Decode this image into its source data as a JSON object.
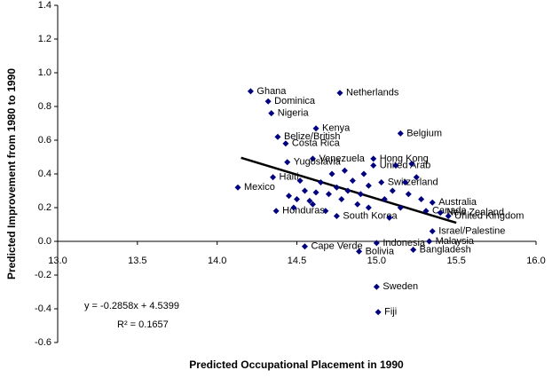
{
  "chart_data": {
    "type": "scatter",
    "x_label": "Predicted Occupational Placement in 1990",
    "y_label": "Predicted Improvement from 1980 to 1990",
    "color": "#000080",
    "xlim": [
      13,
      16
    ],
    "ylim": [
      -0.6,
      1.4
    ],
    "xticks": [
      {
        "value": 13,
        "label": "13.0"
      },
      13.5,
      14.5,
      {
        "value": 14,
        "label": "14.0"
      },
      {
        "value": 15,
        "label": "15.0"
      },
      15.5,
      {
        "value": 16,
        "label": "16.0"
      }
    ],
    "yticks": [
      -0.6,
      -0.4,
      -0.2,
      {
        "value": 0,
        "label": "0.0"
      },
      0.2,
      0.4,
      0.6,
      0.8,
      {
        "value": 1,
        "label": "1.0"
      },
      1.2,
      1.4
    ],
    "x": [
      14.21,
      14.32,
      14.34,
      14.77,
      14.62,
      14.38,
      14.43,
      15.15,
      14.6,
      14.98,
      14.44,
      14.35,
      14.13,
      15.35,
      15.31,
      15.4,
      15.45,
      15.35,
      14.37,
      14.75,
      14.55,
      14.89,
      15.0,
      15.33,
      15.23,
      15.0,
      15.01,
      15.03,
      14.98,
      14.45,
      14.5,
      14.55,
      14.6,
      14.65,
      14.7,
      14.72,
      14.75,
      14.78,
      14.8,
      14.82,
      14.85,
      14.88,
      14.9,
      14.92,
      14.95,
      15.05,
      15.1,
      15.12,
      15.15,
      15.2,
      15.25,
      15.28,
      14.52,
      14.58,
      14.68,
      14.95,
      15.08,
      15.18,
      15.22,
      14.48,
      14.62
    ],
    "values": [
      0.89,
      0.83,
      0.76,
      0.88,
      0.67,
      0.62,
      0.58,
      0.64,
      0.49,
      0.49,
      0.47,
      0.38,
      0.32,
      0.23,
      0.18,
      0.17,
      0.15,
      0.06,
      0.18,
      0.15,
      -0.03,
      -0.06,
      -0.01,
      0.0,
      -0.05,
      -0.27,
      -0.42,
      0.35,
      0.45,
      0.27,
      0.25,
      0.3,
      0.22,
      0.35,
      0.28,
      0.4,
      0.32,
      0.25,
      0.42,
      0.3,
      0.36,
      0.22,
      0.28,
      0.4,
      0.33,
      0.25,
      0.3,
      0.45,
      0.2,
      0.28,
      0.38,
      0.25,
      0.36,
      0.24,
      0.18,
      0.2,
      0.14,
      0.35,
      0.46,
      0.2,
      0.29
    ],
    "labels": [
      "Ghana",
      "Dominica",
      "Nigeria",
      "Netherlands",
      "Kenya",
      "Belize/British",
      "Costa Rica",
      "Belgium",
      "Venezuela",
      "Hong Kong",
      "Yugoslavia",
      "Haiti",
      "Mexico",
      "Australia",
      "Canada",
      "New Zealand",
      "United Kingdom",
      "Israel/Palestine",
      "Honduras",
      "South Korea",
      "Cape Verde",
      "Bolivia",
      "Indonesia",
      "Malaysia",
      "Bangladesh",
      "Sweden",
      "Fiji",
      "Switzerland",
      "United Arab",
      null,
      null,
      null,
      null,
      null,
      null,
      null,
      null,
      null,
      null,
      null,
      null,
      null,
      null,
      null,
      null,
      null,
      null,
      null,
      null,
      null,
      null,
      null,
      null,
      null,
      null,
      null,
      null,
      null,
      null,
      null,
      null
    ],
    "trendline": {
      "slope": -0.2858,
      "intercept": 4.5399,
      "xrange": [
        14.15,
        15.5
      ]
    },
    "annotations": [
      "y = -0.2858x + 4.5399",
      "R² = 0.1657"
    ]
  }
}
